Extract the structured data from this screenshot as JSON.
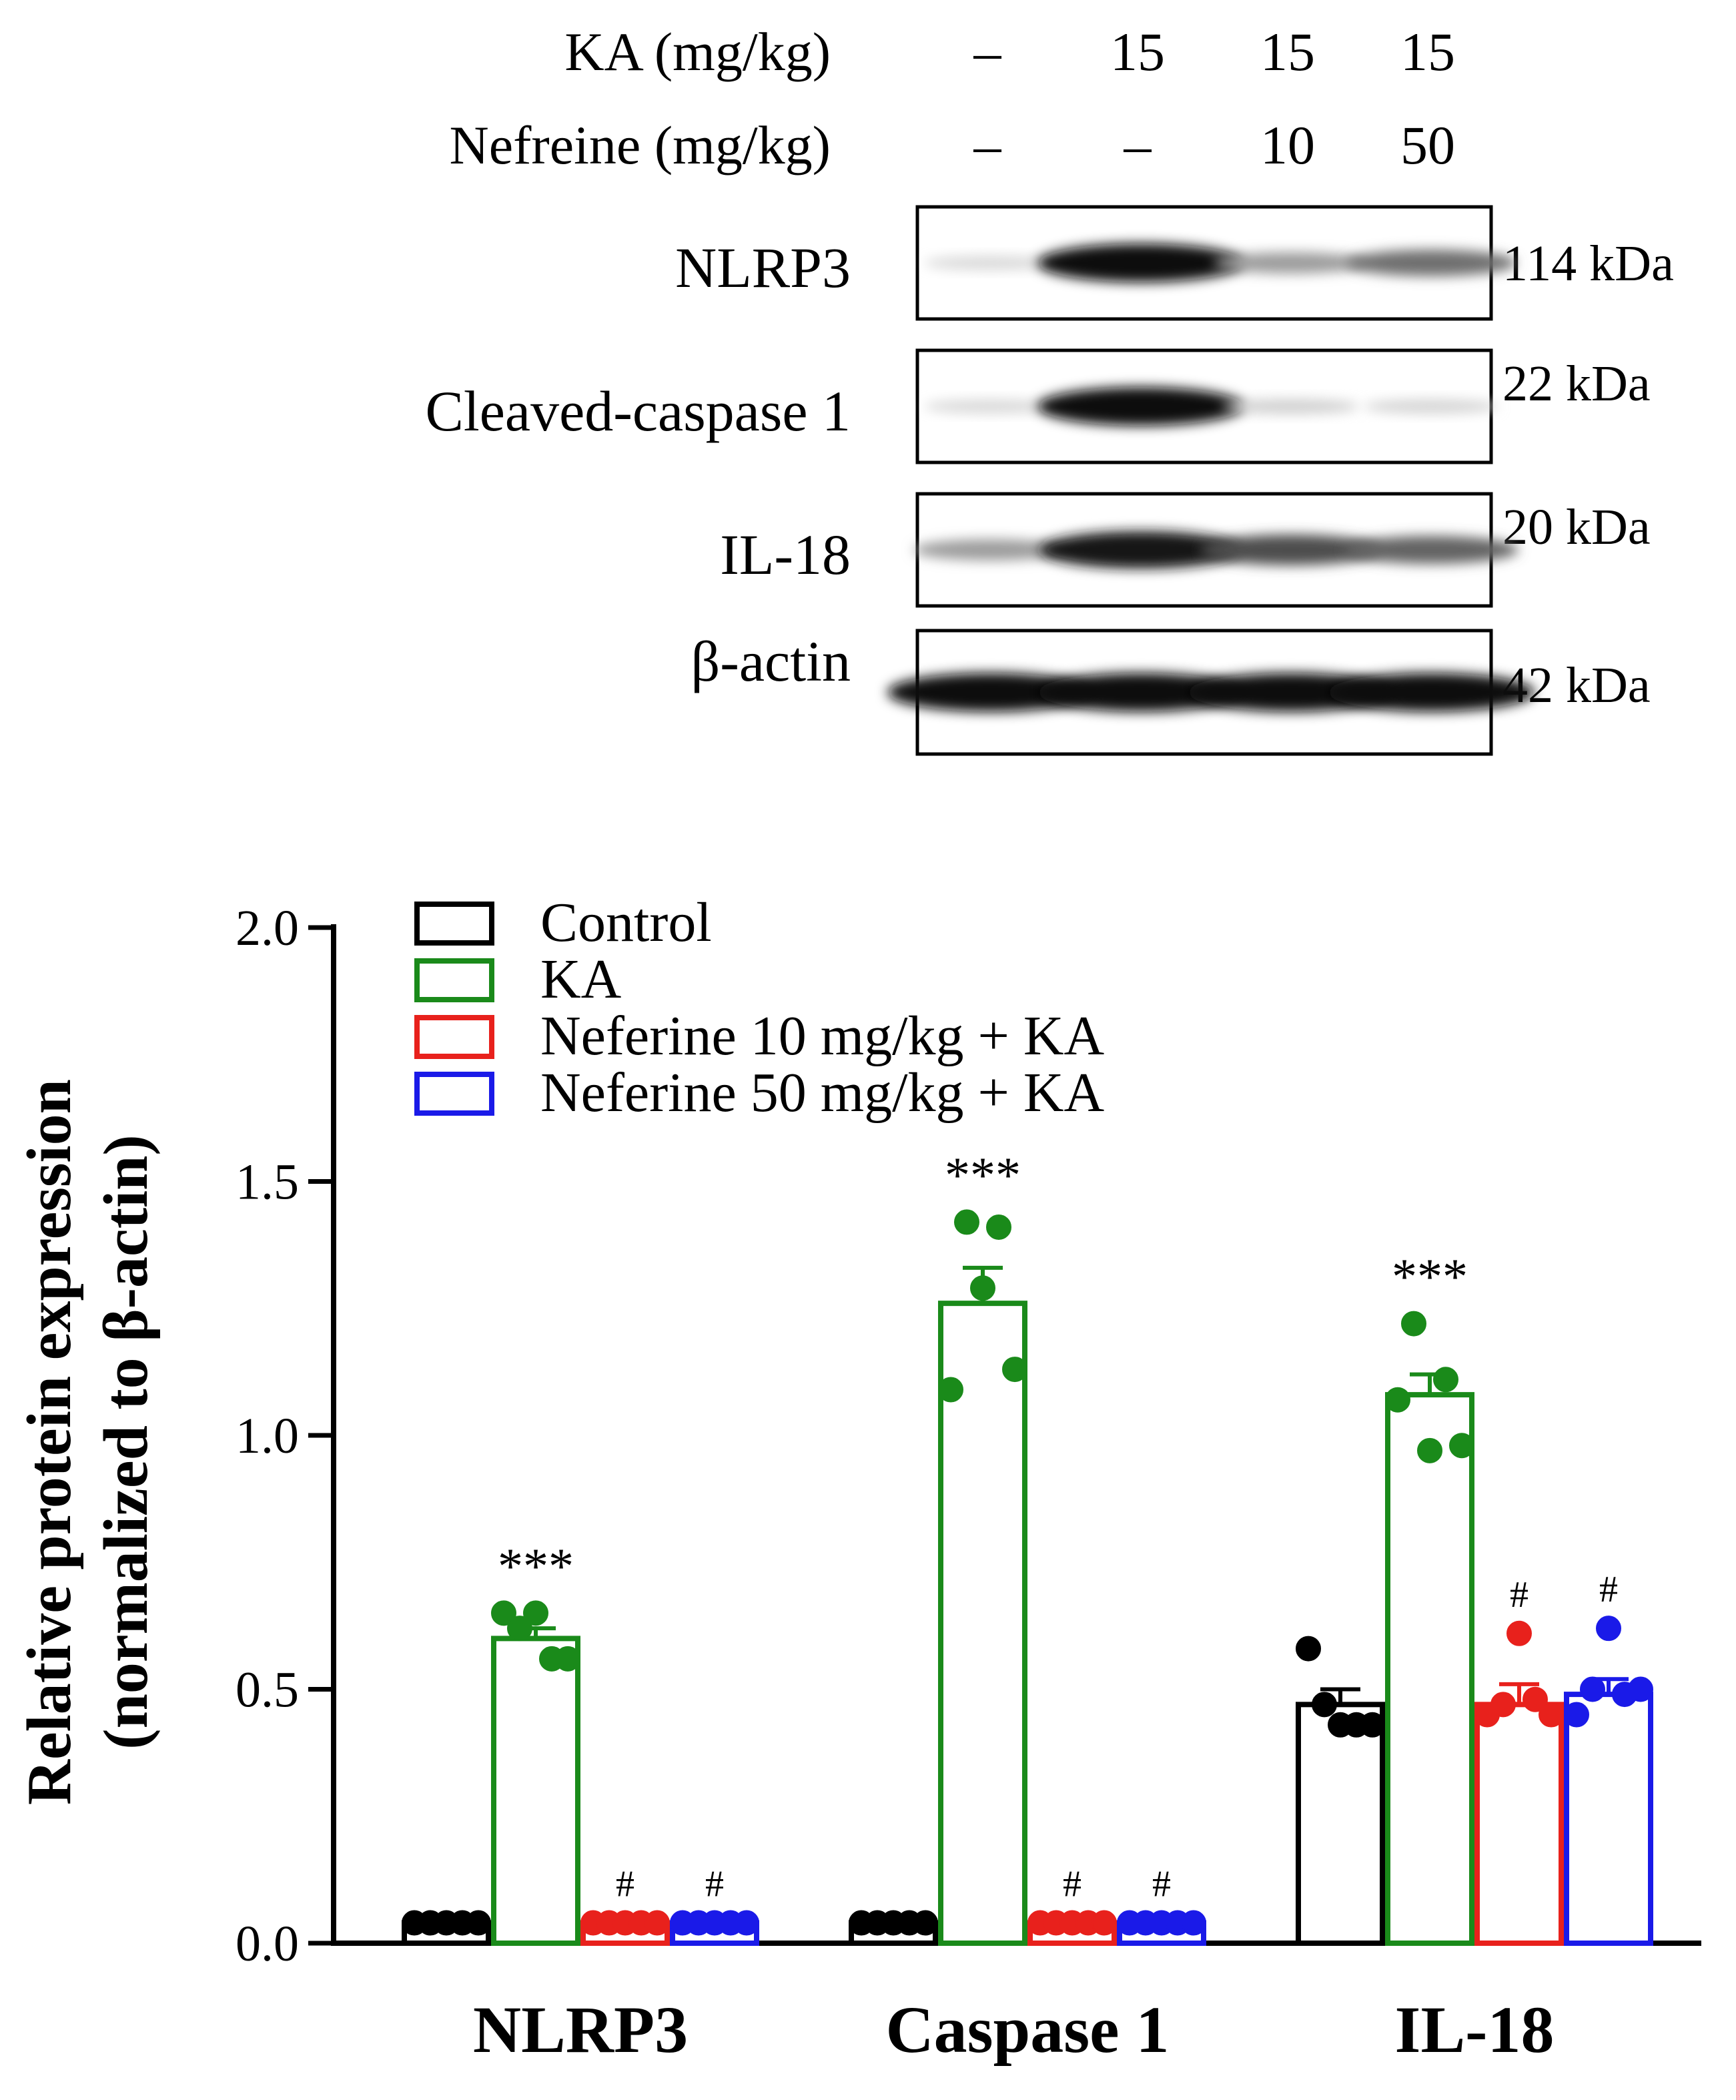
{
  "blot": {
    "conditions": [
      {
        "label": "KA (mg/kg)",
        "values": [
          "–",
          "15",
          "15",
          "15"
        ]
      },
      {
        "label": "Nefreine (mg/kg)",
        "values": [
          "–",
          "–",
          "10",
          "50"
        ]
      }
    ],
    "rows": [
      {
        "name": "NLRP3",
        "size": "114 kDa",
        "intensity": [
          0.08,
          1.0,
          0.35,
          0.55
        ]
      },
      {
        "name": "Cleaved-caspase 1",
        "size": "22 kDa",
        "intensity": [
          0.08,
          1.0,
          0.12,
          0.1
        ]
      },
      {
        "name": "IL-18",
        "size": "20 kDa",
        "intensity": [
          0.35,
          0.95,
          0.7,
          0.6
        ]
      },
      {
        "name": "β-actin",
        "size": "42 kDa",
        "intensity": [
          1.0,
          1.0,
          1.0,
          1.0
        ]
      }
    ]
  },
  "chart_data": {
    "type": "bar",
    "ylabel_line1": "Relative protein expression",
    "ylabel_line2": "(normalized to β-actin)",
    "ylim": [
      0,
      2.0
    ],
    "yticks": [
      "0.0",
      "0.5",
      "1.0",
      "1.5",
      "2.0"
    ],
    "categories": [
      "NLRP3",
      "Caspase 1",
      "IL-18"
    ],
    "legend_position": "top-left",
    "series": [
      {
        "name": "Control",
        "color": "#000000",
        "values": [
          0.04,
          0.04,
          0.47
        ],
        "errors": [
          0.0,
          0.0,
          0.03
        ],
        "points": [
          [
            0.04,
            0.04,
            0.04,
            0.04,
            0.04
          ],
          [
            0.04,
            0.04,
            0.04,
            0.04,
            0.04
          ],
          [
            0.58,
            0.47,
            0.43,
            0.43,
            0.43
          ]
        ],
        "annotations": [
          "",
          "",
          ""
        ]
      },
      {
        "name": "KA",
        "color": "#1a8a1a",
        "values": [
          0.6,
          1.26,
          1.08
        ],
        "errors": [
          0.02,
          0.07,
          0.04
        ],
        "points": [
          [
            0.65,
            0.62,
            0.65,
            0.56,
            0.56
          ],
          [
            1.09,
            1.42,
            1.29,
            1.41,
            1.13
          ],
          [
            1.07,
            1.22,
            0.97,
            1.11,
            0.98
          ]
        ],
        "annotations": [
          "***",
          "***",
          "***"
        ]
      },
      {
        "name": "Neferine 10 mg/kg + KA",
        "color": "#e8211c",
        "values": [
          0.04,
          0.04,
          0.47
        ],
        "errors": [
          0.0,
          0.0,
          0.04
        ],
        "points": [
          [
            0.04,
            0.04,
            0.04,
            0.04,
            0.04
          ],
          [
            0.04,
            0.04,
            0.04,
            0.04,
            0.04
          ],
          [
            0.45,
            0.47,
            0.61,
            0.48,
            0.45
          ]
        ],
        "annotations": [
          "#",
          "#",
          "#"
        ]
      },
      {
        "name": "Neferine 50 mg/kg + KA",
        "color": "#1a1ae8",
        "values": [
          0.04,
          0.04,
          0.49
        ],
        "errors": [
          0.0,
          0.0,
          0.03
        ],
        "points": [
          [
            0.04,
            0.04,
            0.04,
            0.04,
            0.04
          ],
          [
            0.04,
            0.04,
            0.04,
            0.04,
            0.04
          ],
          [
            0.45,
            0.5,
            0.62,
            0.49,
            0.5
          ]
        ],
        "annotations": [
          "#",
          "#",
          "#"
        ]
      }
    ]
  }
}
